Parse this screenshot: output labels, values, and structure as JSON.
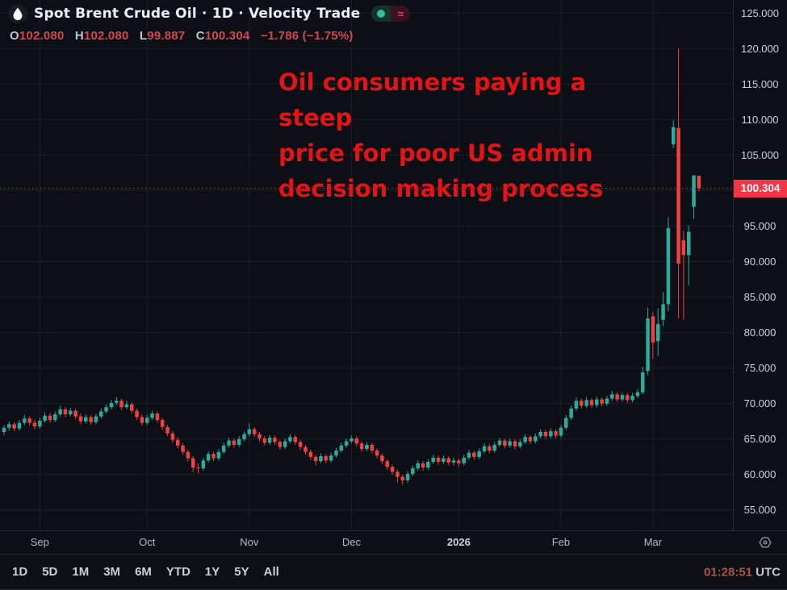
{
  "header": {
    "symbol_title": "Spot Brent Crude Oil · 1D · Velocity Trade",
    "status": {
      "live_dot": "",
      "approx_symbol": "≈"
    },
    "ohlc": {
      "open_label": "O",
      "open": "102.080",
      "high_label": "H",
      "high": "102.080",
      "low_label": "L",
      "low": "99.887",
      "close_label": "C",
      "close": "100.304",
      "change": "−1.786 (−1.75%)"
    }
  },
  "annotation": {
    "text": "Oil consumers paying a steep\nprice for poor US admin\ndecision making process",
    "color": "#e11515"
  },
  "price_scale": {
    "ticks": [
      125,
      120,
      115,
      110,
      105,
      100,
      95,
      90,
      85,
      80,
      75,
      70,
      65,
      60,
      55
    ],
    "last_price_label": "100.304"
  },
  "time_scale": {
    "labels": [
      "Sep",
      "Oct",
      "Nov",
      "Dec",
      "2026",
      "Feb",
      "Mar"
    ]
  },
  "toolbar": {
    "ranges": [
      "1D",
      "5D",
      "1M",
      "3M",
      "6M",
      "YTD",
      "1Y",
      "5Y",
      "All"
    ],
    "clock_time": "01:28:51",
    "clock_zone": "UTC"
  },
  "chart_data": {
    "type": "candlestick",
    "title": "Spot Brent Crude Oil",
    "interval": "1D",
    "provider": "Velocity Trade",
    "ylim": [
      52,
      127
    ],
    "y_ticks": [
      55,
      60,
      65,
      70,
      75,
      80,
      85,
      90,
      95,
      100,
      105,
      110,
      115,
      120,
      125
    ],
    "grid": true,
    "last_price": 100.304,
    "colors": {
      "up": "#2aab9b",
      "down": "#f0403f",
      "price_line": "#f23645",
      "grid": "#1b202a"
    },
    "months": [
      {
        "label": "Sep",
        "index": 7
      },
      {
        "label": "Oct",
        "index": 28
      },
      {
        "label": "Nov",
        "index": 48
      },
      {
        "label": "Dec",
        "index": 68
      },
      {
        "label": "2026",
        "index": 89
      },
      {
        "label": "Feb",
        "index": 109
      },
      {
        "label": "Mar",
        "index": 127
      }
    ],
    "candles": [
      [
        66.0,
        67.0,
        65.6,
        66.6
      ],
      [
        66.6,
        67.5,
        66.2,
        67.1
      ],
      [
        67.1,
        67.4,
        66.1,
        66.5
      ],
      [
        66.5,
        67.7,
        66.2,
        67.3
      ],
      [
        67.3,
        68.4,
        67.0,
        67.9
      ],
      [
        67.9,
        68.2,
        66.9,
        67.3
      ],
      [
        67.3,
        67.7,
        66.4,
        66.8
      ],
      [
        66.8,
        68.0,
        66.5,
        67.6
      ],
      [
        67.6,
        68.8,
        67.3,
        68.3
      ],
      [
        68.3,
        68.7,
        67.3,
        67.7
      ],
      [
        67.7,
        68.9,
        67.4,
        68.5
      ],
      [
        68.5,
        69.7,
        68.2,
        69.2
      ],
      [
        69.2,
        69.5,
        68.1,
        68.5
      ],
      [
        68.5,
        69.4,
        68.2,
        69.0
      ],
      [
        69.0,
        69.3,
        67.8,
        68.2
      ],
      [
        68.2,
        68.6,
        67.1,
        67.5
      ],
      [
        67.5,
        68.5,
        67.2,
        68.1
      ],
      [
        68.1,
        68.4,
        67.0,
        67.4
      ],
      [
        67.4,
        68.6,
        67.1,
        68.2
      ],
      [
        68.2,
        69.3,
        67.9,
        68.9
      ],
      [
        68.9,
        69.9,
        68.6,
        69.5
      ],
      [
        69.5,
        70.5,
        69.2,
        70.1
      ],
      [
        70.1,
        70.9,
        69.8,
        70.4
      ],
      [
        70.4,
        70.7,
        69.1,
        69.5
      ],
      [
        69.5,
        70.4,
        69.2,
        69.9
      ],
      [
        69.9,
        70.2,
        68.6,
        69.0
      ],
      [
        69.0,
        69.3,
        67.7,
        68.1
      ],
      [
        68.1,
        68.5,
        66.9,
        67.3
      ],
      [
        67.3,
        68.4,
        67.0,
        68.0
      ],
      [
        68.0,
        69.0,
        67.7,
        68.6
      ],
      [
        68.6,
        68.9,
        67.3,
        67.7
      ],
      [
        67.7,
        68.0,
        66.3,
        66.7
      ],
      [
        66.7,
        67.0,
        65.4,
        65.8
      ],
      [
        65.8,
        66.1,
        64.5,
        64.9
      ],
      [
        64.9,
        65.3,
        63.7,
        64.1
      ],
      [
        64.1,
        64.4,
        62.8,
        63.2
      ],
      [
        63.2,
        63.5,
        61.9,
        62.3
      ],
      [
        62.3,
        62.6,
        60.4,
        61.0
      ],
      [
        61.0,
        61.6,
        60.2,
        60.9
      ],
      [
        60.9,
        62.4,
        60.6,
        62.0
      ],
      [
        62.0,
        63.3,
        61.7,
        62.9
      ],
      [
        62.9,
        63.2,
        61.9,
        62.3
      ],
      [
        62.3,
        63.6,
        62.0,
        63.2
      ],
      [
        63.2,
        64.5,
        62.9,
        64.1
      ],
      [
        64.1,
        65.2,
        63.8,
        64.8
      ],
      [
        64.8,
        65.1,
        63.8,
        64.2
      ],
      [
        64.2,
        65.4,
        63.9,
        65.0
      ],
      [
        65.0,
        66.1,
        64.7,
        65.7
      ],
      [
        65.7,
        67.2,
        65.4,
        66.4
      ],
      [
        66.4,
        66.7,
        65.3,
        65.7
      ],
      [
        65.7,
        66.0,
        64.7,
        65.1
      ],
      [
        65.1,
        65.4,
        64.1,
        64.5
      ],
      [
        64.5,
        65.6,
        64.2,
        65.2
      ],
      [
        65.2,
        65.5,
        64.2,
        64.6
      ],
      [
        64.6,
        64.9,
        63.5,
        63.9
      ],
      [
        63.9,
        65.1,
        63.6,
        64.7
      ],
      [
        64.7,
        65.7,
        64.4,
        65.3
      ],
      [
        65.3,
        65.6,
        64.2,
        64.6
      ],
      [
        64.6,
        64.9,
        63.5,
        63.9
      ],
      [
        63.9,
        64.2,
        62.8,
        63.2
      ],
      [
        63.2,
        63.5,
        62.1,
        62.5
      ],
      [
        62.5,
        62.8,
        61.3,
        61.9
      ],
      [
        61.9,
        63.0,
        61.6,
        62.6
      ],
      [
        62.6,
        62.9,
        61.6,
        62.0
      ],
      [
        62.0,
        63.1,
        61.7,
        62.7
      ],
      [
        62.7,
        63.8,
        62.4,
        63.4
      ],
      [
        63.4,
        64.5,
        63.1,
        64.1
      ],
      [
        64.1,
        65.1,
        63.8,
        64.7
      ],
      [
        64.7,
        65.5,
        64.4,
        65.1
      ],
      [
        65.1,
        65.4,
        64.0,
        64.4
      ],
      [
        64.4,
        64.7,
        63.2,
        63.6
      ],
      [
        63.6,
        64.6,
        63.3,
        64.2
      ],
      [
        64.2,
        64.5,
        63.0,
        63.4
      ],
      [
        63.4,
        63.7,
        62.3,
        62.7
      ],
      [
        62.7,
        63.0,
        61.5,
        61.9
      ],
      [
        61.9,
        62.2,
        60.7,
        61.1
      ],
      [
        61.1,
        61.4,
        60.0,
        60.4
      ],
      [
        60.4,
        60.7,
        58.9,
        59.7
      ],
      [
        59.7,
        60.0,
        58.6,
        59.2
      ],
      [
        59.2,
        60.5,
        58.9,
        60.1
      ],
      [
        60.1,
        61.3,
        59.8,
        60.9
      ],
      [
        60.9,
        62.0,
        60.6,
        61.6
      ],
      [
        61.6,
        61.9,
        60.6,
        61.0
      ],
      [
        61.0,
        62.2,
        60.7,
        61.8
      ],
      [
        61.8,
        62.8,
        61.5,
        62.4
      ],
      [
        62.4,
        62.7,
        61.4,
        61.8
      ],
      [
        61.8,
        62.7,
        61.5,
        62.3
      ],
      [
        62.3,
        62.6,
        61.3,
        61.7
      ],
      [
        61.7,
        62.4,
        61.3,
        62.0
      ],
      [
        62.0,
        62.3,
        61.1,
        61.6
      ],
      [
        61.6,
        62.8,
        61.3,
        62.4
      ],
      [
        62.4,
        63.5,
        62.1,
        63.1
      ],
      [
        63.1,
        63.4,
        62.1,
        62.5
      ],
      [
        62.5,
        63.7,
        62.2,
        63.3
      ],
      [
        63.3,
        64.4,
        63.0,
        64.0
      ],
      [
        64.0,
        64.3,
        63.0,
        63.4
      ],
      [
        63.4,
        64.6,
        63.1,
        64.2
      ],
      [
        64.2,
        65.2,
        63.9,
        64.8
      ],
      [
        64.8,
        65.1,
        63.7,
        64.1
      ],
      [
        64.1,
        65.1,
        63.8,
        64.7
      ],
      [
        64.7,
        65.0,
        63.6,
        64.0
      ],
      [
        64.0,
        65.0,
        63.7,
        64.6
      ],
      [
        64.6,
        65.7,
        64.3,
        65.3
      ],
      [
        65.3,
        65.6,
        64.3,
        64.7
      ],
      [
        64.7,
        65.8,
        64.4,
        65.4
      ],
      [
        65.4,
        66.4,
        65.1,
        66.0
      ],
      [
        66.0,
        66.3,
        65.0,
        65.4
      ],
      [
        65.4,
        66.5,
        65.1,
        66.1
      ],
      [
        66.1,
        66.4,
        65.1,
        65.5
      ],
      [
        65.5,
        67.0,
        65.2,
        66.6
      ],
      [
        66.6,
        68.4,
        66.3,
        68.0
      ],
      [
        68.0,
        69.7,
        67.7,
        69.3
      ],
      [
        69.3,
        70.9,
        69.0,
        70.4
      ],
      [
        70.4,
        70.7,
        69.3,
        69.7
      ],
      [
        69.7,
        70.9,
        69.4,
        70.5
      ],
      [
        70.5,
        70.8,
        69.4,
        69.8
      ],
      [
        69.8,
        71.0,
        69.5,
        70.6
      ],
      [
        70.6,
        70.9,
        69.6,
        70.0
      ],
      [
        70.0,
        71.1,
        69.7,
        70.7
      ],
      [
        70.7,
        71.8,
        70.4,
        71.3
      ],
      [
        71.3,
        71.6,
        70.2,
        70.6
      ],
      [
        70.6,
        71.6,
        70.3,
        71.2
      ],
      [
        71.2,
        71.5,
        70.1,
        70.5
      ],
      [
        70.5,
        71.5,
        70.2,
        71.1
      ],
      [
        71.1,
        72.0,
        70.8,
        71.6
      ],
      [
        71.6,
        75.2,
        71.3,
        74.4
      ],
      [
        74.6,
        83.5,
        74.0,
        82.0
      ],
      [
        82.3,
        82.9,
        76.3,
        78.6
      ],
      [
        78.8,
        83.4,
        76.7,
        81.2
      ],
      [
        81.8,
        85.7,
        80.9,
        84.0
      ],
      [
        84.0,
        96.2,
        83.0,
        94.7
      ],
      [
        106.5,
        109.9,
        106.0,
        108.9
      ],
      [
        108.8,
        120.0,
        82.0,
        89.7
      ],
      [
        93.0,
        94.3,
        81.8,
        90.9
      ],
      [
        90.9,
        95.1,
        86.6,
        94.2
      ],
      [
        97.7,
        102.2,
        96.0,
        102.1
      ],
      [
        102.08,
        102.08,
        99.887,
        100.304
      ]
    ]
  }
}
